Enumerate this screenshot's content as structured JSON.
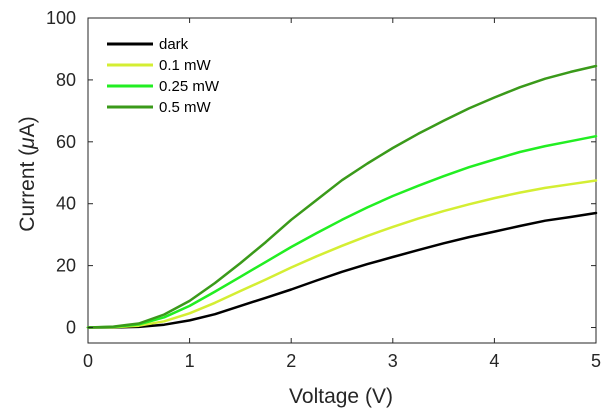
{
  "chart_data": {
    "type": "line",
    "xlabel": "Voltage (V)",
    "ylabel_prefix": "Current (",
    "ylabel_mu": "μ",
    "ylabel_suffix": "A)",
    "xlim": [
      0,
      5
    ],
    "ylim": [
      -5,
      100
    ],
    "x_ticks": [
      "0",
      "1",
      "2",
      "3",
      "4",
      "5"
    ],
    "y_ticks": [
      "0",
      "20",
      "40",
      "60",
      "80",
      "100"
    ],
    "grid": false,
    "legend_position": "top-left",
    "x": [
      0,
      0.25,
      0.5,
      0.75,
      1,
      1.25,
      1.5,
      1.75,
      2,
      2.25,
      2.5,
      2.75,
      3,
      3.25,
      3.5,
      3.75,
      4,
      4.25,
      4.5,
      4.75,
      5
    ],
    "series": [
      {
        "name": "dark",
        "color": "#000000",
        "values": [
          0,
          0,
          0.2,
          0.9,
          2.3,
          4.3,
          7,
          9.6,
          12.3,
          15.2,
          18,
          20.5,
          22.8,
          25,
          27.2,
          29.2,
          31,
          32.8,
          34.5,
          35.7,
          37
        ]
      },
      {
        "name": "0.1 mW",
        "color": "#d4ee33",
        "values": [
          0,
          0.1,
          0.6,
          2,
          4.6,
          8,
          11.8,
          15.5,
          19.4,
          23,
          26.4,
          29.6,
          32.5,
          35.2,
          37.6,
          39.8,
          41.8,
          43.6,
          45.1,
          46.3,
          47.5
        ]
      },
      {
        "name": "0.25 mW",
        "color": "#22ee22",
        "values": [
          0,
          0.2,
          1,
          3.3,
          7,
          11.6,
          16.4,
          21.2,
          26,
          30.5,
          34.8,
          38.8,
          42.5,
          45.8,
          48.9,
          51.8,
          54.3,
          56.7,
          58.6,
          60.2,
          61.8
        ]
      },
      {
        "name": "0.5 mW",
        "color": "#3a9a1a",
        "values": [
          0,
          0.3,
          1.3,
          4.2,
          8.6,
          14.4,
          20.8,
          27.6,
          34.8,
          41.2,
          47.6,
          53,
          58,
          62.6,
          66.8,
          70.8,
          74.3,
          77.6,
          80.4,
          82.6,
          84.5
        ]
      }
    ]
  }
}
